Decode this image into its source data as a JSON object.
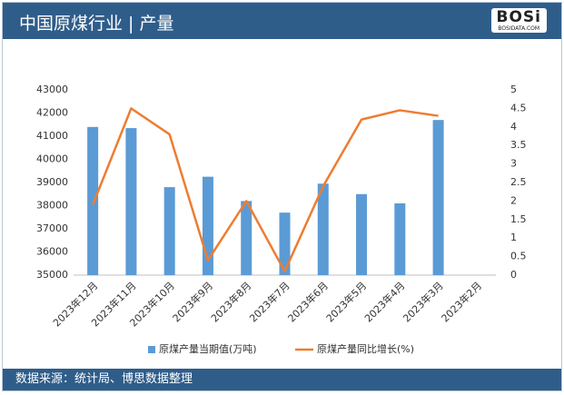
{
  "header": {
    "title": "中国原煤行业 | 产量",
    "logo": "BOSi",
    "logo_sub": "BOSIDATA.COM"
  },
  "footer": "数据来源：统计局、博思数据整理",
  "chart_data": {
    "type": "bar-line",
    "categories": [
      "2023年12月",
      "2023年11月",
      "2023年10月",
      "2023年9月",
      "2023年8月",
      "2023年7月",
      "2023年6月",
      "2023年5月",
      "2023年4月",
      "2023年3月",
      "2023年2月"
    ],
    "series": [
      {
        "name": "原煤产量当期值(万吨)",
        "color": "#5b9bd5",
        "type": "bar",
        "values": [
          41400,
          41350,
          38800,
          39250,
          38200,
          37700,
          38950,
          38500,
          38100,
          41700,
          null
        ]
      },
      {
        "name": "原煤产量同比增长(%)",
        "color": "#ed7d31",
        "type": "line",
        "axis": "y2",
        "values": [
          1.9,
          4.5,
          3.8,
          0.4,
          2.0,
          0.1,
          2.4,
          4.2,
          4.45,
          4.3,
          null
        ]
      }
    ],
    "ylim": [
      35000,
      43000
    ],
    "yticks": [
      35000,
      36000,
      37000,
      38000,
      39000,
      40000,
      41000,
      42000,
      43000
    ],
    "y2lim": [
      0,
      5
    ],
    "y2ticks": [
      0,
      0.5,
      1,
      1.5,
      2,
      2.5,
      3,
      3.5,
      4,
      4.5,
      5
    ],
    "legend": "bottom"
  }
}
